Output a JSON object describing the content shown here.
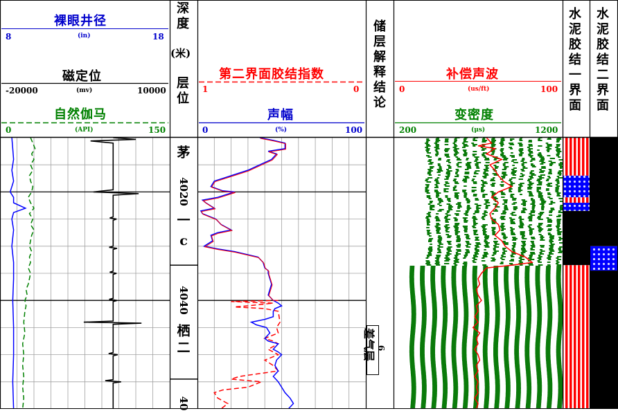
{
  "headers": {
    "caliper": {
      "title": "裸眼井径",
      "min": "8",
      "unit": "(in)",
      "max": "18"
    },
    "ccl": {
      "title": "磁定位",
      "min": "-20000",
      "unit": "(mv)",
      "max": "10000"
    },
    "gr": {
      "title": "自然伽马",
      "min": "0",
      "unit": "(API)",
      "max": "150"
    },
    "depth": {
      "title_a": "深度",
      "title_b": "(米)",
      "title_c": "层位"
    },
    "bond2": {
      "title": "第二界面胶结指数",
      "min": "1",
      "max": "0"
    },
    "amp": {
      "title": "声幅",
      "min": "0",
      "unit": "(%)",
      "max": "100"
    },
    "interp": {
      "title": "储层解释结论"
    },
    "dt": {
      "title": "补偿声波",
      "min": "0",
      "unit": "(us/ft)",
      "max": "100"
    },
    "vdl": {
      "title": "变密度",
      "min": "200",
      "unit": "(μs)",
      "max": "1200"
    },
    "bond1col": {
      "title": "水泥胶结一界面"
    },
    "bond2col": {
      "title": "水泥胶结二界面"
    }
  },
  "depth_track": {
    "labels": [
      {
        "text": "茅",
        "depth": 4012.5
      },
      {
        "text": "4020",
        "depth": 4020
      },
      {
        "text": "一",
        "depth": 4025
      },
      {
        "text": "c",
        "depth": 4029
      },
      {
        "text": "4040",
        "depth": 4040
      },
      {
        "text": "栖",
        "depth": 4045.5
      },
      {
        "text": "二",
        "depth": 4048.5
      },
      {
        "text": "40",
        "depth": 4059
      }
    ]
  },
  "interpretation": {
    "layer": "差气层",
    "number": "6",
    "top_depth": 4049,
    "bottom_depth": 4057
  },
  "chart_data": {
    "type": "line",
    "y_axis": {
      "name": "depth",
      "range": [
        4010,
        4060
      ]
    },
    "tick_depths": [
      4020,
      4040
    ],
    "formation_boundaries": [
      4033.5,
      4054.5
    ],
    "series": [
      {
        "name": "裸眼井径",
        "range": [
          8,
          18
        ],
        "color": "#0000ff",
        "points": [
          [
            4010,
            8.7
          ],
          [
            4012,
            8.75
          ],
          [
            4014,
            8.8
          ],
          [
            4016,
            8.7
          ],
          [
            4018,
            8.8
          ],
          [
            4020,
            8.6
          ],
          [
            4021,
            8.8
          ],
          [
            4022,
            8.8
          ],
          [
            4023,
            9.5
          ],
          [
            4023.8,
            8.8
          ],
          [
            4025,
            8.7
          ],
          [
            4027,
            8.8
          ],
          [
            4030,
            8.7
          ],
          [
            4033,
            8.8
          ],
          [
            4036,
            8.8
          ],
          [
            4040,
            8.75
          ],
          [
            4045,
            8.8
          ],
          [
            4050,
            8.8
          ],
          [
            4055,
            8.75
          ],
          [
            4060,
            8.8
          ]
        ]
      },
      {
        "name": "自然伽马",
        "range": [
          0,
          150
        ],
        "color": "#008000",
        "dash": true,
        "points": [
          [
            4010,
            27
          ],
          [
            4011,
            29
          ],
          [
            4012,
            31
          ],
          [
            4013,
            28
          ],
          [
            4014,
            30
          ],
          [
            4015,
            27
          ],
          [
            4016,
            29
          ],
          [
            4017,
            26
          ],
          [
            4018,
            27
          ],
          [
            4019,
            29
          ],
          [
            4020,
            28
          ],
          [
            4021,
            25
          ],
          [
            4022,
            27
          ],
          [
            4023,
            30
          ],
          [
            4024,
            26
          ],
          [
            4025,
            29
          ],
          [
            4026,
            27
          ],
          [
            4027,
            30
          ],
          [
            4028,
            28
          ],
          [
            4029,
            27
          ],
          [
            4030,
            26
          ],
          [
            4031,
            28
          ],
          [
            4032,
            26
          ],
          [
            4033,
            27
          ],
          [
            4034,
            25
          ],
          [
            4035,
            27
          ],
          [
            4036,
            26
          ],
          [
            4037,
            25
          ],
          [
            4038,
            23
          ],
          [
            4039,
            24
          ],
          [
            4040,
            22
          ],
          [
            4041,
            23
          ],
          [
            4042,
            22
          ],
          [
            4044,
            21
          ],
          [
            4046,
            22
          ],
          [
            4048,
            20
          ],
          [
            4050,
            21
          ],
          [
            4052,
            20
          ],
          [
            4054,
            21
          ],
          [
            4056,
            20
          ],
          [
            4058,
            21
          ],
          [
            4060,
            20
          ]
        ]
      },
      {
        "name": "磁定位",
        "range": [
          -20000,
          10000
        ],
        "color": "#000000",
        "points": [
          [
            4010,
            0
          ],
          [
            4010.3,
            4000
          ],
          [
            4010.6,
            -4000
          ],
          [
            4011,
            0
          ],
          [
            4019.6,
            0
          ],
          [
            4020,
            -3500
          ],
          [
            4020.3,
            4500
          ],
          [
            4020.6,
            0
          ],
          [
            4024.6,
            0
          ],
          [
            4024.8,
            -600
          ],
          [
            4025,
            600
          ],
          [
            4025.2,
            0
          ],
          [
            4030,
            0
          ],
          [
            4030.2,
            -700
          ],
          [
            4030.4,
            700
          ],
          [
            4030.6,
            0
          ],
          [
            4034.6,
            0
          ],
          [
            4034.8,
            -600
          ],
          [
            4035,
            600
          ],
          [
            4035.2,
            0
          ],
          [
            4039.6,
            0
          ],
          [
            4039.8,
            -700
          ],
          [
            4040,
            700
          ],
          [
            4040.2,
            0
          ],
          [
            4043.8,
            0
          ],
          [
            4044,
            -5200
          ],
          [
            4044.2,
            5000
          ],
          [
            4044.4,
            0
          ],
          [
            4049.6,
            0
          ],
          [
            4049.8,
            -800
          ],
          [
            4050,
            800
          ],
          [
            4050.2,
            0
          ],
          [
            4054.6,
            0
          ],
          [
            4054.8,
            -1400
          ],
          [
            4055,
            1400
          ],
          [
            4055.2,
            0
          ],
          [
            4060,
            0
          ]
        ]
      },
      {
        "name": "第二界面胶结指数",
        "range": [
          1,
          0
        ],
        "color": "#ff0000",
        "dash": true,
        "points": [
          [
            4040,
            0.52
          ],
          [
            4040.2,
            0.8
          ],
          [
            4040.5,
            0.55
          ],
          [
            4041,
            0.7
          ],
          [
            4041.2,
            0.78
          ],
          [
            4041.5,
            0.6
          ],
          [
            4042,
            0.52
          ],
          [
            4044,
            0.51
          ],
          [
            4045,
            0.53
          ],
          [
            4046,
            0.52
          ],
          [
            4047,
            0.6
          ],
          [
            4047.5,
            0.55
          ],
          [
            4048,
            0.52
          ],
          [
            4049,
            0.58
          ],
          [
            4050,
            0.52
          ],
          [
            4051,
            0.6
          ],
          [
            4052,
            0.55
          ],
          [
            4053,
            0.52
          ],
          [
            4054,
            0.75
          ],
          [
            4054.5,
            0.8
          ],
          [
            4055,
            0.62
          ],
          [
            4056,
            0.7
          ],
          [
            4056.5,
            0.85
          ],
          [
            4057,
            0.9
          ],
          [
            4058,
            0.88
          ],
          [
            4059,
            0.82
          ],
          [
            4060,
            0.86
          ]
        ]
      },
      {
        "name": "声幅",
        "range": [
          0,
          100
        ],
        "color": "#0000ff",
        "points": [
          [
            4010,
            37
          ],
          [
            4010.5,
            45
          ],
          [
            4011,
            52
          ],
          [
            4012,
            52
          ],
          [
            4012.5,
            42
          ],
          [
            4013,
            47
          ],
          [
            4014,
            44
          ],
          [
            4015,
            37
          ],
          [
            4016,
            30
          ],
          [
            4017,
            20
          ],
          [
            4018,
            10
          ],
          [
            4019,
            8
          ],
          [
            4019.8,
            15
          ],
          [
            4020,
            22
          ],
          [
            4021,
            12
          ],
          [
            4021.5,
            3
          ],
          [
            4022,
            5
          ],
          [
            4023,
            10
          ],
          [
            4023.5,
            2
          ],
          [
            4024,
            3
          ],
          [
            4025,
            11
          ],
          [
            4026,
            14
          ],
          [
            4027,
            20
          ],
          [
            4027.5,
            12
          ],
          [
            4028,
            8
          ],
          [
            4029,
            9
          ],
          [
            4030,
            4
          ],
          [
            4030.5,
            12
          ],
          [
            4031,
            22
          ],
          [
            4032,
            36
          ],
          [
            4033,
            39
          ],
          [
            4034,
            40
          ],
          [
            4034.5,
            42
          ],
          [
            4035,
            42
          ],
          [
            4036,
            43
          ],
          [
            4037,
            44
          ],
          [
            4038,
            43
          ],
          [
            4039,
            42
          ],
          [
            4040,
            45
          ],
          [
            4040.5,
            48
          ],
          [
            4041,
            50
          ],
          [
            4041.5,
            46
          ],
          [
            4042,
            45
          ],
          [
            4043,
            45
          ],
          [
            4043.5,
            40
          ],
          [
            4044,
            32
          ],
          [
            4044.5,
            35
          ],
          [
            4045,
            41
          ],
          [
            4046,
            43
          ],
          [
            4047,
            40
          ],
          [
            4047.5,
            42
          ],
          [
            4048,
            48
          ],
          [
            4049,
            45
          ],
          [
            4049.5,
            48
          ],
          [
            4050,
            50
          ],
          [
            4051,
            47
          ],
          [
            4052,
            46
          ],
          [
            4053,
            48
          ],
          [
            4054,
            45
          ],
          [
            4055,
            48
          ],
          [
            4056,
            50
          ],
          [
            4057,
            52
          ],
          [
            4058,
            55
          ],
          [
            4059,
            57
          ],
          [
            4060,
            54
          ]
        ]
      },
      {
        "name": "补偿声波",
        "range": [
          0,
          100
        ],
        "color": "#ff0000",
        "points": [
          [
            4010,
            55
          ],
          [
            4011,
            58
          ],
          [
            4011.5,
            50
          ],
          [
            4012,
            60
          ],
          [
            4013,
            55
          ],
          [
            4014,
            64
          ],
          [
            4015,
            57
          ],
          [
            4016,
            60
          ],
          [
            4017,
            62
          ],
          [
            4018,
            65
          ],
          [
            4019,
            70
          ],
          [
            4020,
            62
          ],
          [
            4021,
            58
          ],
          [
            4022,
            62
          ],
          [
            4023,
            60
          ],
          [
            4024,
            57
          ],
          [
            4025,
            58
          ],
          [
            4026,
            62
          ],
          [
            4027,
            63
          ],
          [
            4028,
            60
          ],
          [
            4029,
            64
          ],
          [
            4030,
            66
          ],
          [
            4031,
            70
          ],
          [
            4032,
            78
          ],
          [
            4033,
            82
          ],
          [
            4033.5,
            70
          ],
          [
            4034,
            55
          ],
          [
            4035,
            52
          ],
          [
            4036,
            50
          ],
          [
            4037,
            51
          ],
          [
            4038,
            49
          ],
          [
            4039,
            50
          ],
          [
            4040,
            52
          ],
          [
            4041,
            49
          ],
          [
            4042,
            50
          ],
          [
            4043,
            48
          ],
          [
            4044,
            50
          ],
          [
            4045,
            47
          ],
          [
            4046,
            51
          ],
          [
            4047,
            49
          ],
          [
            4048,
            50
          ],
          [
            4049,
            48
          ],
          [
            4050,
            50
          ],
          [
            4051,
            51
          ],
          [
            4052,
            49
          ],
          [
            4053,
            50
          ],
          [
            4054,
            48
          ],
          [
            4055,
            50
          ],
          [
            4056,
            49
          ],
          [
            4057,
            50
          ],
          [
            4058,
            48
          ],
          [
            4059,
            50
          ],
          [
            4060,
            49
          ]
        ]
      }
    ],
    "vdl": {
      "x_range": [
        200,
        1200
      ],
      "top_start_us": 400,
      "lower_start_us": 300,
      "change_depth": 4033.5
    },
    "bond1_column": {
      "intervals": [
        {
          "from": 4010,
          "to": 4017,
          "pattern": "red-white"
        },
        {
          "from": 4017,
          "to": 4021,
          "pattern": "blue-dots"
        },
        {
          "from": 4021,
          "to": 4022,
          "pattern": "red-white"
        },
        {
          "from": 4022,
          "to": 4023.5,
          "pattern": "blue-dots"
        },
        {
          "from": 4023.5,
          "to": 4033.5,
          "pattern": "black"
        },
        {
          "from": 4033.5,
          "to": 4060,
          "pattern": "red-white"
        }
      ]
    },
    "bond2_column": {
      "intervals": [
        {
          "from": 4010,
          "to": 4030,
          "pattern": "black"
        },
        {
          "from": 4030,
          "to": 4034.5,
          "pattern": "blue-dots"
        },
        {
          "from": 4034.5,
          "to": 4060,
          "pattern": "black"
        }
      ]
    }
  }
}
